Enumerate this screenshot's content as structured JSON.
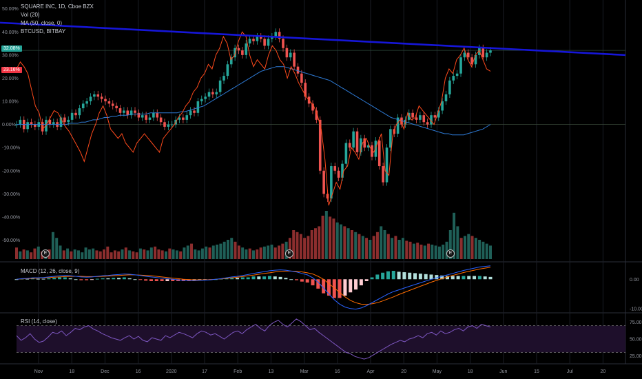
{
  "legend": {
    "symbol": "SQUARE INC, 1D, Cboe BZX",
    "vol": "Vol (20)",
    "ma": "MA (50, close, 0)",
    "compare": "BTCUSD, BITBAY",
    "macd": "MACD (12, 26, close, 9)",
    "rsi": "RSI (14, close)"
  },
  "badges": {
    "sq": "32.08%",
    "btc": "23.16%"
  },
  "earnings_marker": "E",
  "colors": {
    "up": "#26a69a",
    "down": "#ef5350",
    "btc_line": "#ff4a1c",
    "ma_line": "#2e7bd6",
    "trend_line": "#1616d8",
    "macd_line": "#2962ff",
    "signal_line": "#ff6d00",
    "rsi_line": "#7e57c2",
    "rsi_band": "#1e0f2b"
  },
  "chart_data": [
    {
      "type": "line",
      "title": "SQUARE INC, 1D, Cboe BZX",
      "y_unit": "percent change",
      "ylim": [
        -57,
        52
      ],
      "y_ticks": [
        "50.00%",
        "40.00%",
        "30.00%",
        "20.00%",
        "10.00%",
        "0.00%",
        "-10.00%",
        "-20.00%",
        "-30.00%",
        "-40.00%",
        "-50.00%"
      ],
      "x_ticks": [
        "Nov",
        "18",
        "Dec",
        "16",
        "2020",
        "17",
        "Feb",
        "13",
        "Mar",
        "16",
        "Apr",
        "20",
        "May",
        "18",
        "Jun",
        "15",
        "Jul",
        "20"
      ],
      "series": [
        {
          "name": "SQUARE INC",
          "style": "candles",
          "values": [
            0,
            2,
            -2,
            1,
            0,
            -1,
            1,
            -3,
            2,
            0,
            1,
            -1,
            3,
            1,
            2,
            5,
            4,
            7,
            9,
            10,
            12,
            13,
            12,
            11,
            10,
            9,
            8,
            7,
            5,
            6,
            4,
            6,
            5,
            3,
            4,
            2,
            3,
            5,
            3,
            1,
            -1,
            0,
            0,
            2,
            3,
            2,
            4,
            6,
            5,
            10,
            11,
            12,
            14,
            13,
            14,
            19,
            21,
            26,
            29,
            33,
            32,
            30,
            35,
            37,
            36,
            38,
            37,
            34,
            37,
            38,
            40,
            37,
            33,
            29,
            31,
            25,
            22,
            18,
            12,
            9,
            6,
            2,
            -20,
            -30,
            -32,
            -18,
            -20,
            -23,
            -17,
            -8,
            -10,
            -3,
            -12,
            -6,
            -10,
            -9,
            -14,
            -7,
            -18,
            -25,
            -10,
            -2,
            -4,
            3,
            0,
            2,
            5,
            3,
            2,
            4,
            1,
            0,
            4,
            3,
            6,
            10,
            13,
            19,
            21,
            22,
            29,
            31,
            29,
            26,
            30,
            33,
            29,
            31,
            32
          ]
        },
        {
          "name": "BTCUSD, BITBAY",
          "style": "line",
          "values": [
            24,
            27,
            25,
            22,
            15,
            8,
            5,
            -2,
            0,
            3,
            6,
            5,
            2,
            -1,
            -3,
            -6,
            -9,
            -12,
            -16,
            -10,
            -4,
            0,
            5,
            8,
            4,
            -2,
            -4,
            -6,
            -4,
            -8,
            -10,
            -12,
            -8,
            -6,
            -4,
            -6,
            -8,
            -10,
            -12,
            -6,
            -4,
            -2,
            0,
            3,
            5,
            8,
            10,
            14,
            16,
            20,
            22,
            26,
            24,
            30,
            33,
            38,
            35,
            28,
            30,
            36,
            40,
            38,
            30,
            25,
            28,
            26,
            24,
            30,
            34,
            32,
            28,
            26,
            20,
            25,
            22,
            18,
            15,
            12,
            10,
            8,
            4,
            -2,
            -15,
            -35,
            -30,
            -25,
            -28,
            -20,
            -18,
            -10,
            -12,
            -15,
            -8,
            -6,
            -10,
            -12,
            -8,
            -4,
            -20,
            -22,
            -5,
            0,
            2,
            -2,
            5,
            2,
            3,
            8,
            6,
            4,
            2,
            0,
            5,
            10,
            20,
            24,
            22,
            28,
            30,
            33,
            28,
            25,
            30,
            32,
            28,
            24,
            23
          ]
        },
        {
          "name": "MA (50, close, 0)",
          "style": "line",
          "values": [
            0,
            0,
            0,
            0,
            0,
            0,
            0,
            0,
            0,
            0,
            0,
            0,
            0,
            0,
            0.5,
            0.5,
            0.5,
            1,
            1,
            1.5,
            2,
            2,
            2.5,
            3,
            3,
            3.5,
            3.5,
            4,
            4,
            4,
            4.5,
            4.5,
            4.5,
            4.5,
            4.5,
            5,
            5,
            5,
            5,
            5,
            5,
            5,
            5,
            5.5,
            5.5,
            6,
            6.5,
            7,
            7.5,
            8,
            9,
            10,
            11,
            12,
            13,
            14,
            15,
            16,
            17,
            18,
            19,
            20,
            21,
            22,
            23,
            23.5,
            24,
            24.5,
            25,
            25,
            25,
            24.5,
            24,
            23.5,
            23,
            22.5,
            22,
            21.5,
            21,
            20.5,
            20,
            19.5,
            19,
            18,
            17,
            16,
            15,
            14,
            13,
            12,
            11,
            10,
            9,
            8,
            7,
            6,
            5,
            4,
            3,
            2.5,
            2,
            1.5,
            1,
            0.5,
            0,
            -0.5,
            -1,
            -1.5,
            -2,
            -2.5,
            -3,
            -3.5,
            -4,
            -4,
            -4.5,
            -4.5,
            -4.5,
            -4.5,
            -4,
            -3.5,
            -3,
            -2.5,
            -2,
            -1,
            0
          ]
        }
      ],
      "trendline": [
        44,
        30
      ],
      "volume": [
        12,
        8,
        10,
        9,
        7,
        11,
        13,
        8,
        9,
        10,
        28,
        22,
        14,
        9,
        11,
        8,
        10,
        9,
        7,
        12,
        10,
        11,
        9,
        8,
        10,
        13,
        7,
        9,
        8,
        10,
        12,
        9,
        8,
        7,
        11,
        10,
        9,
        12,
        13,
        10,
        9,
        8,
        11,
        10,
        9,
        8,
        12,
        14,
        16,
        10,
        9,
        11,
        13,
        12,
        14,
        15,
        16,
        18,
        20,
        22,
        18,
        14,
        12,
        10,
        11,
        9,
        10,
        12,
        13,
        14,
        15,
        12,
        14,
        16,
        18,
        22,
        30,
        28,
        26,
        22,
        24,
        30,
        32,
        34,
        45,
        50,
        44,
        42,
        38,
        36,
        34,
        32,
        30,
        28,
        26,
        24,
        22,
        20,
        24,
        28,
        34,
        30,
        26,
        22,
        24,
        20,
        22,
        19,
        18,
        16,
        17,
        15,
        14,
        16,
        15,
        14,
        13,
        15,
        18,
        30,
        48,
        34,
        22,
        24,
        26,
        24,
        22,
        20,
        18,
        16,
        14
      ],
      "vol_up": [
        0,
        1,
        0,
        1,
        0,
        0,
        1,
        0,
        1,
        0,
        1,
        1,
        1,
        0,
        1,
        0,
        1,
        1,
        1,
        1,
        1,
        1,
        0,
        0,
        0,
        0,
        0,
        0,
        0,
        1,
        0,
        1,
        0,
        0,
        1,
        0,
        1,
        1,
        0,
        0,
        0,
        1,
        0,
        1,
        1,
        0,
        1,
        1,
        0,
        1,
        1,
        1,
        1,
        0,
        1,
        1,
        1,
        1,
        1,
        1,
        0,
        0,
        1,
        1,
        0,
        1,
        0,
        0,
        1,
        1,
        1,
        0,
        0,
        0,
        1,
        0,
        0,
        0,
        0,
        0,
        0,
        0,
        0,
        0,
        0,
        1,
        0,
        0,
        1,
        1,
        0,
        1,
        0,
        1,
        0,
        1,
        0,
        1,
        0,
        0,
        1,
        1,
        0,
        1,
        0,
        1,
        1,
        0,
        0,
        1,
        0,
        0,
        1,
        0,
        1,
        1,
        1,
        1,
        1,
        1,
        1,
        1,
        0,
        1,
        1,
        0,
        1,
        1,
        1,
        1,
        1
      ]
    },
    {
      "type": "line",
      "title": "MACD (12, 26, close, 9)",
      "ylim": [
        -11,
        5
      ],
      "y_ticks": [
        "0.00",
        "-10.00"
      ],
      "series": [
        {
          "name": "MACD",
          "values": [
            0,
            0.2,
            0.3,
            0.5,
            0.5,
            0.6,
            0.8,
            1,
            1.2,
            1.3,
            1.2,
            1,
            0.8,
            0.7,
            0.8,
            1,
            1.2,
            1.3,
            1.5,
            1.6,
            1.8,
            1.7,
            1.5,
            1.3,
            1,
            0.8,
            0.6,
            0.4,
            0.2,
            0,
            -0.2,
            -0.4,
            -0.5,
            -0.5,
            -0.4,
            -0.3,
            -0.2,
            0,
            0.2,
            0.5,
            0.8,
            1,
            1.3,
            1.6,
            2,
            2.3,
            2.6,
            2.9,
            3.1,
            3.2,
            3.1,
            2.8,
            2.5,
            2,
            1.5,
            0.5,
            -1,
            -3,
            -5,
            -7,
            -8.5,
            -9.5,
            -10,
            -10.2,
            -9.8,
            -9,
            -8,
            -7,
            -6,
            -5,
            -4.2,
            -3.6,
            -3,
            -2.4,
            -1.8,
            -1.2,
            -0.6,
            0,
            0.5,
            1,
            1.5,
            2,
            2.5,
            3,
            3.4,
            3.8,
            4.2,
            4.4,
            4.6
          ]
        },
        {
          "name": "Signal",
          "values": [
            0,
            0.1,
            0.2,
            0.3,
            0.4,
            0.5,
            0.6,
            0.7,
            0.8,
            0.9,
            1,
            1,
            1,
            0.9,
            0.9,
            0.9,
            1,
            1.1,
            1.2,
            1.3,
            1.4,
            1.5,
            1.5,
            1.4,
            1.3,
            1.2,
            1,
            0.8,
            0.6,
            0.4,
            0.2,
            0,
            -0.1,
            -0.2,
            -0.2,
            -0.2,
            -0.1,
            0,
            0.1,
            0.3,
            0.5,
            0.7,
            0.9,
            1.2,
            1.4,
            1.7,
            2,
            2.2,
            2.5,
            2.7,
            2.8,
            2.8,
            2.7,
            2.5,
            2.2,
            1.8,
            1,
            0,
            -1.5,
            -3,
            -4.5,
            -6,
            -7.2,
            -8,
            -8.5,
            -8.6,
            -8.4,
            -8,
            -7.4,
            -6.7,
            -6,
            -5.2,
            -4.5,
            -3.8,
            -3.1,
            -2.4,
            -1.7,
            -1,
            -0.4,
            0.2,
            0.8,
            1.3,
            1.8,
            2.3,
            2.7,
            3.1,
            3.5,
            3.8,
            4.1
          ]
        }
      ]
    },
    {
      "type": "line",
      "title": "RSI (14, close)",
      "ylim": [
        15,
        85
      ],
      "y_ticks": [
        "75.00",
        "50.00",
        "25.00"
      ],
      "bands": [
        70,
        30
      ],
      "series": [
        {
          "name": "RSI",
          "values": [
            55,
            48,
            52,
            58,
            50,
            45,
            47,
            53,
            60,
            58,
            62,
            55,
            60,
            66,
            64,
            68,
            70,
            65,
            62,
            58,
            55,
            52,
            50,
            48,
            52,
            55,
            50,
            54,
            48,
            46,
            52,
            50,
            48,
            55,
            52,
            56,
            60,
            58,
            55,
            52,
            58,
            62,
            60,
            56,
            58,
            54,
            50,
            55,
            60,
            62,
            58,
            64,
            68,
            72,
            66,
            62,
            70,
            75,
            78,
            72,
            68,
            74,
            80,
            76,
            70,
            64,
            66,
            60,
            55,
            50,
            45,
            40,
            35,
            30,
            28,
            24,
            22,
            20,
            22,
            26,
            30,
            34,
            38,
            42,
            45,
            48,
            46,
            50,
            52,
            55,
            52,
            58,
            60,
            56,
            62,
            58,
            60,
            64,
            66,
            62,
            68,
            70,
            66,
            72,
            70,
            68
          ]
        }
      ]
    }
  ]
}
